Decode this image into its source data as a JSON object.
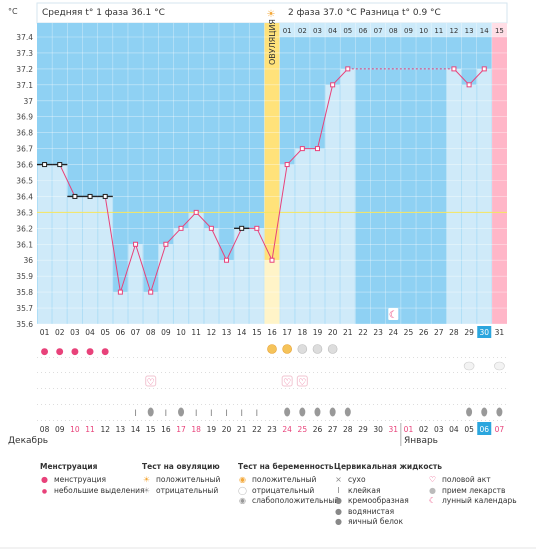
{
  "header": {
    "phase1_label": "Средняя t° 1 фаза",
    "phase1_value": "36.1 °C",
    "phase2_label": "2 фаза",
    "phase2_value": "37.0 °C",
    "diff_label": "Разница t°",
    "diff_value": "0.9 °C",
    "ovulation_label": "ОВУЛЯЦИЯ"
  },
  "chart_data": {
    "type": "line",
    "ylabel": "°C",
    "ylim": [
      35.6,
      37.4
    ],
    "yticks": [
      "35.6",
      "35.7",
      "35.8",
      "35.9",
      "36",
      "36.1",
      "36.2",
      "36.3",
      "36.4",
      "36.5",
      "36.6",
      "36.7",
      "36.8",
      "36.9",
      "37",
      "37.1",
      "37.2",
      "37.3",
      "37.4"
    ],
    "coverline": 36.3,
    "ovulation_day": 16,
    "cycle_days": [
      "01",
      "02",
      "03",
      "04",
      "05",
      "06",
      "07",
      "08",
      "09",
      "10",
      "11",
      "12",
      "13",
      "14",
      "15",
      "16",
      "17",
      "18",
      "19",
      "20",
      "21",
      "22",
      "23",
      "24",
      "25",
      "26",
      "27",
      "28",
      "29",
      "30",
      "31"
    ],
    "phase2_days": [
      "01",
      "02",
      "03",
      "04",
      "05",
      "06",
      "07",
      "08",
      "09",
      "10",
      "11",
      "12",
      "13",
      "14",
      "15"
    ],
    "temperatures": [
      36.6,
      36.6,
      36.4,
      36.4,
      36.4,
      35.8,
      36.1,
      35.8,
      36.1,
      36.2,
      36.3,
      36.2,
      36.0,
      36.2,
      36.2,
      36.0,
      36.6,
      36.7,
      36.7,
      37.1,
      37.2,
      null,
      null,
      null,
      null,
      null,
      null,
      37.2,
      37.1,
      37.2,
      null
    ],
    "interpolated_segment": [
      21,
      28
    ],
    "dates": [
      "08",
      "09",
      "10",
      "11",
      "12",
      "13",
      "14",
      "15",
      "16",
      "17",
      "18",
      "19",
      "20",
      "21",
      "22",
      "23",
      "24",
      "25",
      "26",
      "27",
      "28",
      "29",
      "30",
      "31",
      "01",
      "02",
      "03",
      "04",
      "05",
      "06",
      "07"
    ],
    "red_dates": [
      3,
      4,
      10,
      11,
      17,
      18,
      24,
      25,
      31
    ],
    "today_index": 30,
    "months": [
      "Декабрь",
      "Январь"
    ],
    "period_days": [
      1,
      2,
      3,
      4,
      5
    ],
    "ovulation_test_days": {
      "positive": [
        16,
        17
      ],
      "negative": [
        18,
        19,
        20
      ]
    },
    "heart_days": [
      8,
      17,
      18
    ],
    "pill_days": [
      29,
      31
    ],
    "moon_day": 24,
    "sticky_days": [
      7,
      9,
      11,
      12,
      13,
      14,
      15
    ],
    "drop_days": [
      8,
      10,
      17,
      18,
      19,
      20,
      21,
      29,
      30,
      31
    ]
  },
  "legend": {
    "menstruation": {
      "title": "Менструация",
      "items": [
        "менструация",
        "небольшие выделения"
      ]
    },
    "ovulation_test": {
      "title": "Тест на овуляцию",
      "items": [
        "положительный",
        "отрицательный"
      ]
    },
    "pregnancy_test": {
      "title": "Тест на беременность",
      "items": [
        "положительный",
        "отрицательный",
        "слабоположительный"
      ]
    },
    "cervical": {
      "title": "Цервикальная жидкость",
      "items": [
        "сухо",
        "клейкая",
        "кремообразная",
        "водянистая",
        "яичный белок"
      ]
    },
    "other": {
      "items": [
        "половой акт",
        "прием лекарств",
        "лунный календарь"
      ]
    }
  },
  "colors": {
    "bar": "#cfeaf9",
    "bg_top": "#8fd1f3",
    "ovulation": "#ffe27a",
    "grid": "#ffffff",
    "line": "#e8427a",
    "period": "#e8427a",
    "today": "#2ba6de",
    "empty": "#ffb6c8"
  }
}
